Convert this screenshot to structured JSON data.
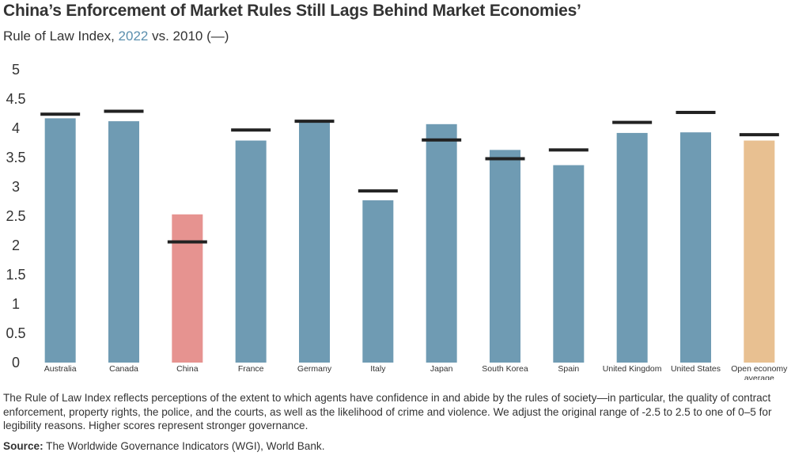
{
  "title": "China’s Enforcement of Market Rules Still Lags Behind Market Economies’",
  "subtitle": {
    "prefix": "Rule of Law Index, ",
    "highlight": "2022",
    "suffix": " vs. 2010 (—)"
  },
  "note": "The Rule of Law Index reflects perceptions of the extent to which agents have confidence in and abide by the rules of society—in particular, the quality of contract enforcement, property rights, the police, and the courts, as well as the likelihood of crime and violence. We adjust the original range of -2.5 to 2.5 to one of 0–5 for legibility reasons. Higher scores represent stronger governance.",
  "source": {
    "label": "Source:",
    "text": " The Worldwide Governance Indicators (WGI), World Bank."
  },
  "colors": {
    "default": "#6f9bb3",
    "highlight": "#e69390",
    "average": "#e8c091",
    "marker": "#222222",
    "axis_text": "#333333"
  },
  "chart_data": {
    "type": "bar",
    "categories": [
      "Australia",
      "Canada",
      "China",
      "France",
      "Germany",
      "Italy",
      "Japan",
      "South Korea",
      "Spain",
      "United Kingdom",
      "United States",
      "Open economy average"
    ],
    "series": [
      {
        "name": "2022",
        "values": [
          4.17,
          4.12,
          2.53,
          3.79,
          4.12,
          2.77,
          4.07,
          3.63,
          3.37,
          3.92,
          3.93,
          3.79
        ]
      },
      {
        "name": "2010",
        "values": [
          4.24,
          4.29,
          2.06,
          3.97,
          4.12,
          2.93,
          3.8,
          3.48,
          3.63,
          4.1,
          4.27,
          3.89
        ]
      }
    ],
    "bar_colors": [
      "default",
      "default",
      "highlight",
      "default",
      "default",
      "default",
      "default",
      "default",
      "default",
      "default",
      "default",
      "average"
    ],
    "ylim": [
      0,
      5
    ],
    "yticks": [
      "0",
      "0.5",
      "1",
      "1.5",
      "2",
      "2.5",
      "3",
      "3.5",
      "4",
      "4.5",
      "5"
    ],
    "ytick_values": [
      0,
      0.5,
      1,
      1.5,
      2,
      2.5,
      3,
      3.5,
      4,
      4.5,
      5
    ],
    "xlabel": "",
    "ylabel": "",
    "grid": false
  }
}
